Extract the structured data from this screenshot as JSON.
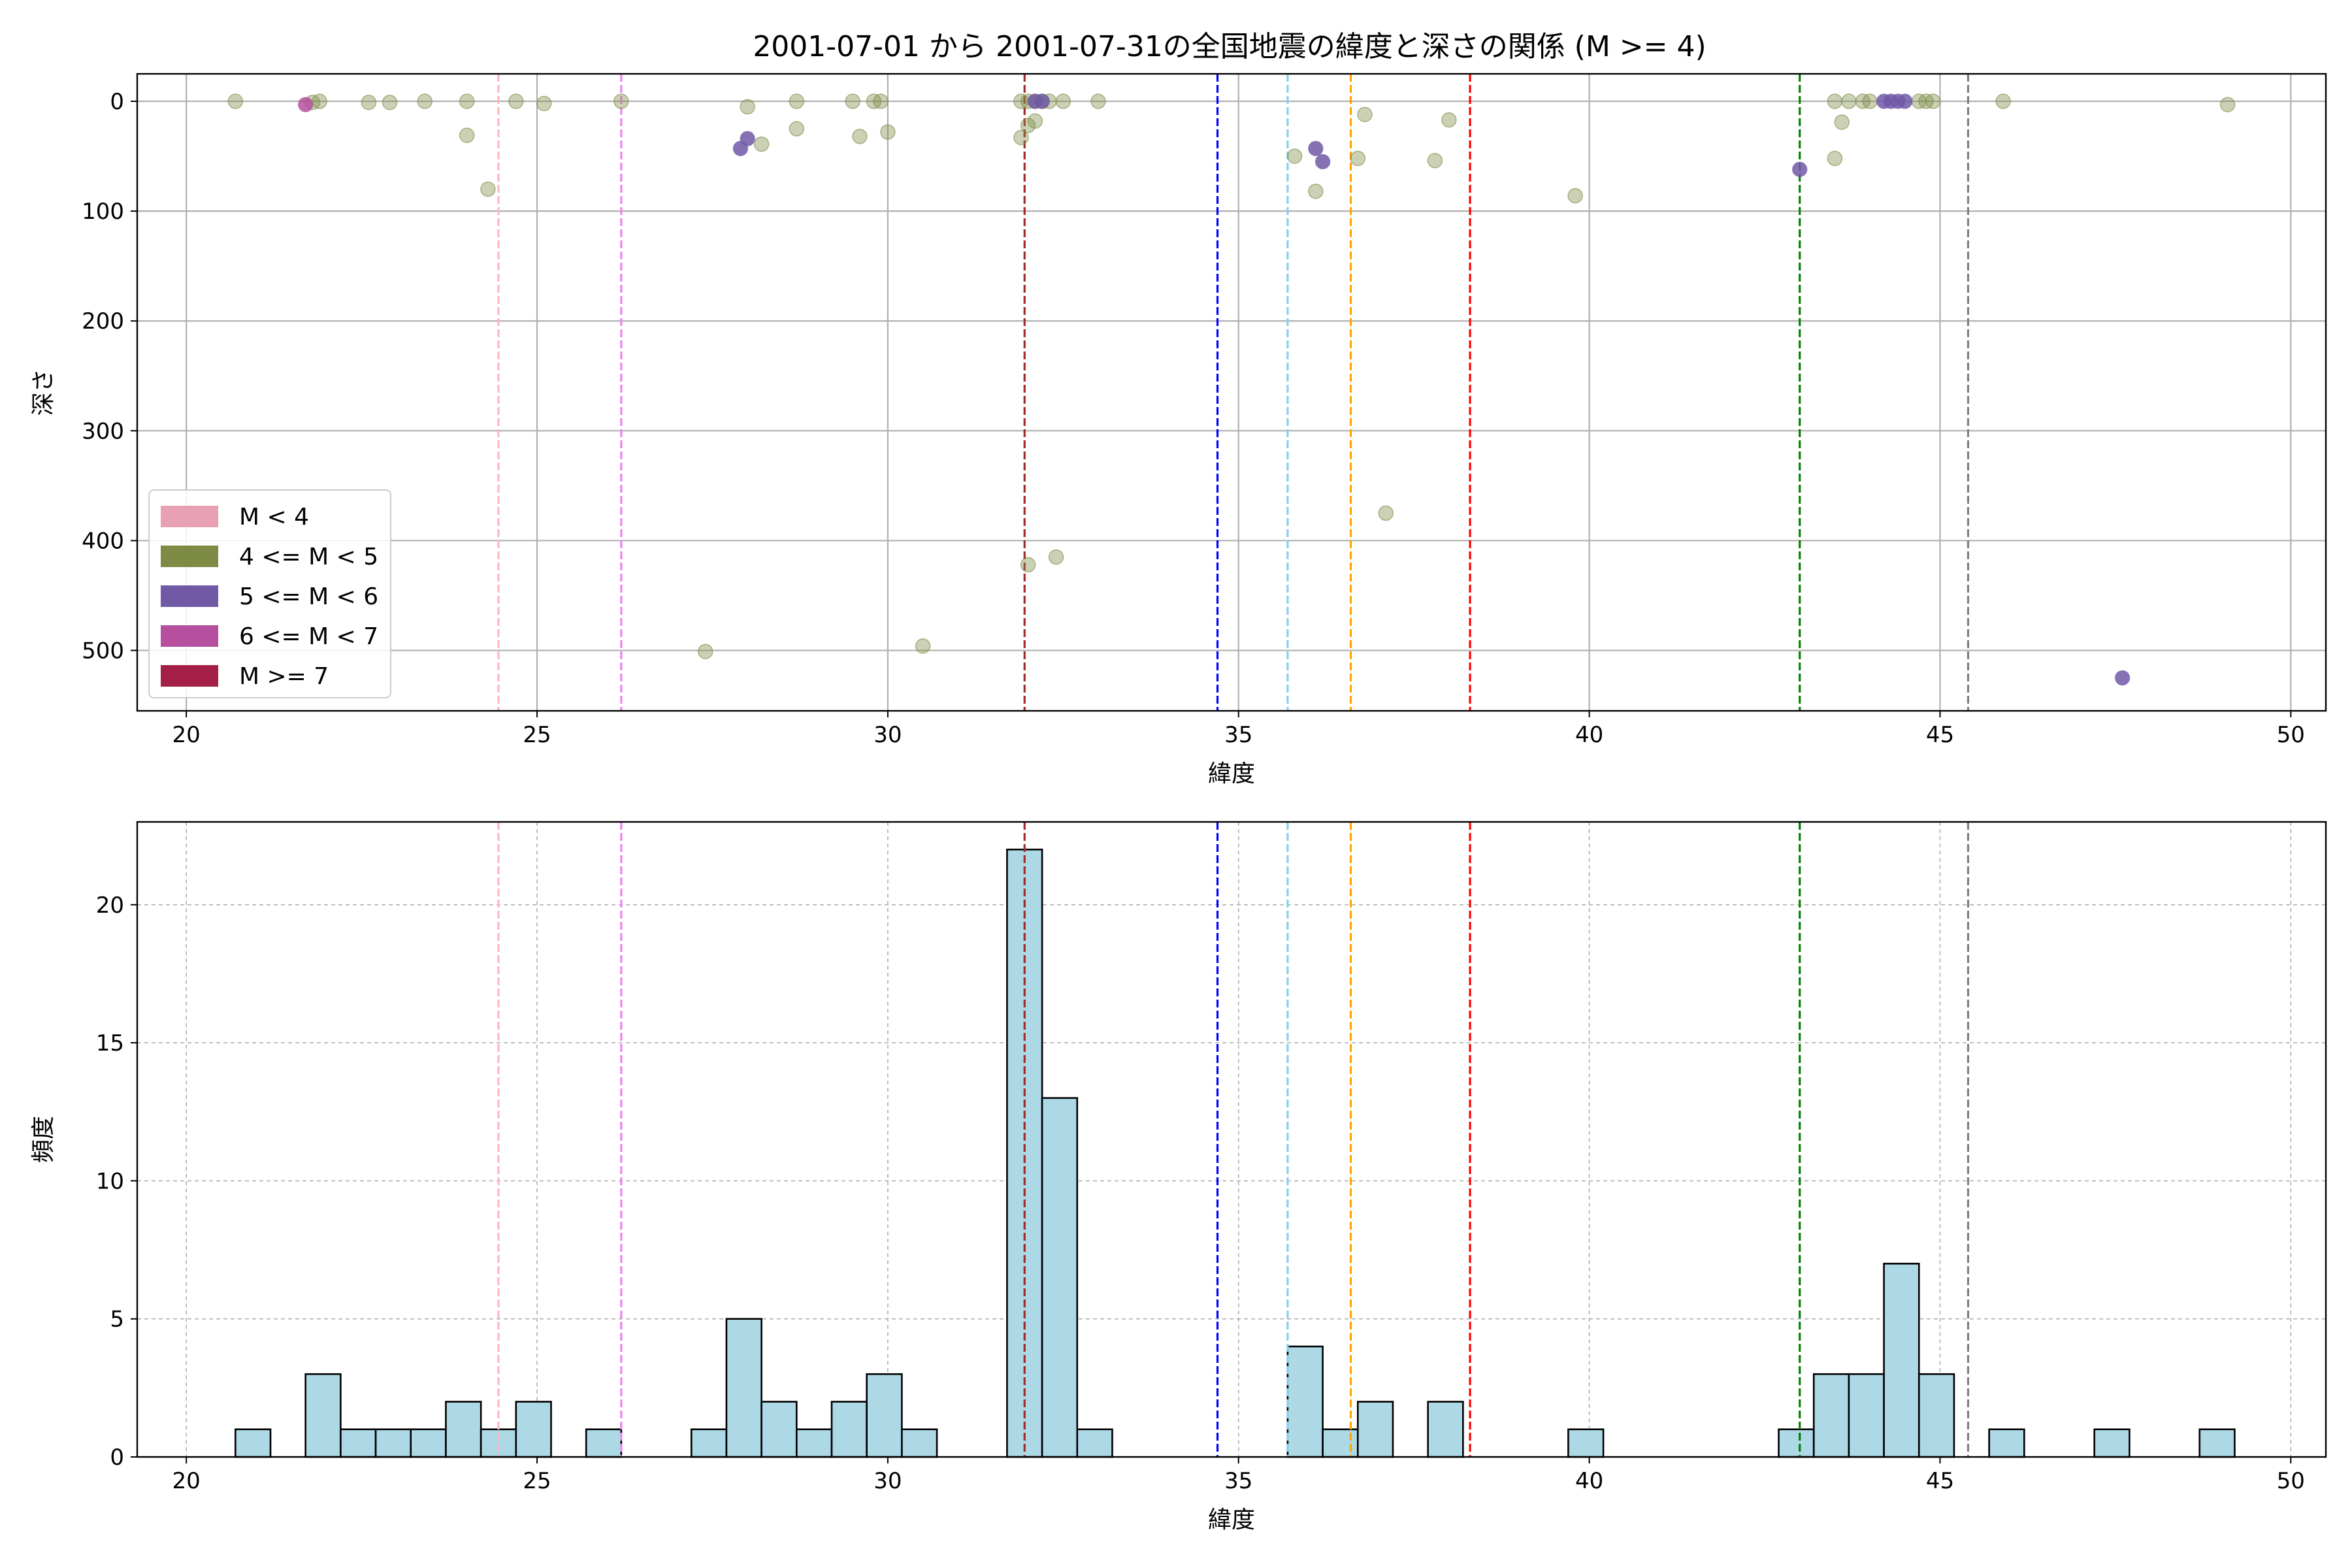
{
  "chart_data": [
    {
      "type": "scatter",
      "title": "2001-07-01 から 2001-07-31の全国地震の緯度と深さの関係 (M >= 4)",
      "xlabel": "緯度",
      "ylabel": "深さ",
      "xlim": [
        19.3,
        50.5
      ],
      "ylim": [
        555,
        -25
      ],
      "y_inverted": true,
      "xticks": [
        20,
        25,
        30,
        35,
        40,
        45,
        50
      ],
      "yticks": [
        0,
        100,
        200,
        300,
        400,
        500
      ],
      "grid": true,
      "legend_position": "lower-left",
      "legend": [
        {
          "label": "M < 4",
          "color": "#e8a0b4"
        },
        {
          "label": "4 <= M < 5",
          "color": "#7d8b45"
        },
        {
          "label": "5 <= M < 6",
          "color": "#7159a6"
        },
        {
          "label": "6 <= M < 7",
          "color": "#b64f9d"
        },
        {
          "label": "M >= 7",
          "color": "#a31f48"
        }
      ],
      "vlines": [
        {
          "x": 24.45,
          "color": "#ffb6c1"
        },
        {
          "x": 26.2,
          "color": "#ee82ee"
        },
        {
          "x": 31.95,
          "color": "#a52a2a"
        },
        {
          "x": 34.7,
          "color": "#0000ff"
        },
        {
          "x": 35.7,
          "color": "#87ceeb"
        },
        {
          "x": 36.6,
          "color": "#ffa500"
        },
        {
          "x": 38.3,
          "color": "#ff0000"
        },
        {
          "x": 43.0,
          "color": "#008000"
        },
        {
          "x": 45.4,
          "color": "#808080"
        }
      ],
      "series": [
        {
          "name": "4 <= M < 5",
          "color": "#7d8b45",
          "points": [
            [
              20.7,
              0
            ],
            [
              21.8,
              1
            ],
            [
              21.9,
              0
            ],
            [
              22.6,
              1
            ],
            [
              22.9,
              1
            ],
            [
              23.4,
              0
            ],
            [
              24.0,
              0
            ],
            [
              24.0,
              31
            ],
            [
              24.3,
              80
            ],
            [
              24.7,
              0
            ],
            [
              25.1,
              2
            ],
            [
              26.2,
              0
            ],
            [
              27.4,
              501
            ],
            [
              28.0,
              5
            ],
            [
              28.2,
              39
            ],
            [
              28.7,
              0
            ],
            [
              28.7,
              25
            ],
            [
              29.5,
              0
            ],
            [
              29.6,
              32
            ],
            [
              29.8,
              0
            ],
            [
              30.0,
              28
            ],
            [
              29.9,
              0
            ],
            [
              30.5,
              496
            ],
            [
              31.9,
              0
            ],
            [
              32.0,
              0
            ],
            [
              32.1,
              0
            ],
            [
              32.2,
              0
            ],
            [
              32.3,
              0
            ],
            [
              31.9,
              33
            ],
            [
              32.0,
              22
            ],
            [
              32.1,
              18
            ],
            [
              32.0,
              422
            ],
            [
              32.4,
              415
            ],
            [
              32.5,
              0
            ],
            [
              33.0,
              0
            ],
            [
              35.8,
              50
            ],
            [
              36.1,
              82
            ],
            [
              36.7,
              52
            ],
            [
              36.8,
              12
            ],
            [
              37.1,
              375
            ],
            [
              37.8,
              54
            ],
            [
              38.0,
              17
            ],
            [
              39.8,
              86
            ],
            [
              43.5,
              0
            ],
            [
              43.7,
              0
            ],
            [
              43.9,
              0
            ],
            [
              43.5,
              52
            ],
            [
              43.6,
              19
            ],
            [
              44.0,
              0
            ],
            [
              44.7,
              0
            ],
            [
              44.8,
              0
            ],
            [
              44.9,
              0
            ],
            [
              45.9,
              0
            ],
            [
              49.1,
              3
            ]
          ]
        },
        {
          "name": "5 <= M < 6",
          "color": "#7159a6",
          "points": [
            [
              27.9,
              43
            ],
            [
              28.0,
              34
            ],
            [
              32.1,
              0
            ],
            [
              32.2,
              0
            ],
            [
              36.1,
              43
            ],
            [
              36.2,
              55
            ],
            [
              43.0,
              62
            ],
            [
              44.2,
              0
            ],
            [
              44.3,
              0
            ],
            [
              44.4,
              0
            ],
            [
              44.5,
              0
            ],
            [
              47.6,
              525
            ]
          ]
        },
        {
          "name": "6 <= M < 7",
          "color": "#b64f9d",
          "points": [
            [
              21.7,
              3
            ]
          ]
        }
      ]
    },
    {
      "type": "bar",
      "subtype": "histogram",
      "xlabel": "緯度",
      "ylabel": "頻度",
      "xlim": [
        19.3,
        50.5
      ],
      "ylim": [
        0,
        23
      ],
      "xticks": [
        20,
        25,
        30,
        35,
        40,
        45,
        50
      ],
      "yticks": [
        0,
        5,
        10,
        15,
        20
      ],
      "grid": true,
      "bar_color": "#add8e6",
      "bin_width": 0.5,
      "bins": [
        [
          20.7,
          1
        ],
        [
          21.7,
          3
        ],
        [
          22.2,
          1
        ],
        [
          22.7,
          1
        ],
        [
          23.2,
          1
        ],
        [
          23.7,
          2
        ],
        [
          24.2,
          1
        ],
        [
          24.7,
          2
        ],
        [
          25.7,
          1
        ],
        [
          27.2,
          1
        ],
        [
          27.7,
          5
        ],
        [
          28.2,
          2
        ],
        [
          28.7,
          1
        ],
        [
          29.2,
          2
        ],
        [
          29.7,
          3
        ],
        [
          30.2,
          1
        ],
        [
          31.7,
          22
        ],
        [
          32.2,
          13
        ],
        [
          32.7,
          1
        ],
        [
          35.7,
          4
        ],
        [
          36.2,
          1
        ],
        [
          36.7,
          2
        ],
        [
          37.7,
          2
        ],
        [
          39.7,
          1
        ],
        [
          42.7,
          1
        ],
        [
          43.2,
          3
        ],
        [
          43.7,
          3
        ],
        [
          44.2,
          7
        ],
        [
          44.7,
          3
        ],
        [
          45.7,
          1
        ],
        [
          47.2,
          1
        ],
        [
          48.7,
          1
        ]
      ],
      "vlines": [
        {
          "x": 24.45,
          "color": "#ffb6c1"
        },
        {
          "x": 26.2,
          "color": "#ee82ee"
        },
        {
          "x": 31.95,
          "color": "#a52a2a"
        },
        {
          "x": 34.7,
          "color": "#0000ff"
        },
        {
          "x": 35.7,
          "color": "#87ceeb"
        },
        {
          "x": 36.6,
          "color": "#ffa500"
        },
        {
          "x": 38.3,
          "color": "#ff0000"
        },
        {
          "x": 43.0,
          "color": "#008000"
        },
        {
          "x": 45.4,
          "color": "#808080"
        }
      ]
    }
  ]
}
